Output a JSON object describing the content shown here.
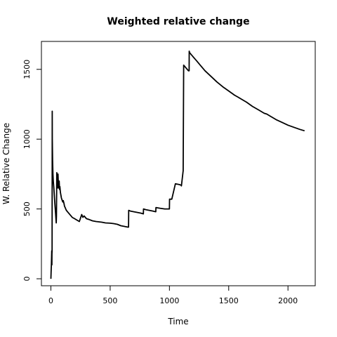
{
  "chart_data": {
    "type": "line",
    "title": "Weighted relative change",
    "xlabel": "Time",
    "ylabel": "W. Relative Change",
    "xlim": [
      -80,
      2230
    ],
    "ylim": [
      -50,
      1700
    ],
    "xticks": [
      0,
      500,
      1000,
      1500,
      2000
    ],
    "yticks": [
      0,
      500,
      1000,
      1500
    ],
    "grid": false,
    "series": [
      {
        "x": [
          0,
          2,
          4,
          6,
          7,
          8,
          9,
          10,
          11,
          12,
          14,
          17,
          20,
          25,
          30,
          35,
          40,
          43,
          45,
          47,
          50,
          52,
          55,
          58,
          60,
          63,
          66,
          70,
          73,
          76,
          80,
          84,
          88,
          92,
          96,
          100,
          104,
          110,
          115,
          120,
          125,
          130,
          140,
          150,
          160,
          170,
          180,
          200,
          220,
          240,
          260,
          270,
          280,
          300,
          320,
          350,
          380,
          400,
          430,
          460,
          500,
          530,
          560,
          590,
          620,
          650,
          655,
          656,
          670,
          700,
          730,
          760,
          780,
          781,
          800,
          830,
          860,
          885,
          886,
          920,
          960,
          1000,
          1001,
          1020,
          1050,
          1080,
          1100,
          1101,
          1115,
          1116,
          1120,
          1130,
          1140,
          1150,
          1160,
          1166,
          1167,
          1170,
          1190,
          1210,
          1230,
          1260,
          1300,
          1350,
          1400,
          1450,
          1500,
          1550,
          1580,
          1600,
          1650,
          1700,
          1750,
          1800,
          1820,
          1830,
          1850,
          1900,
          1950,
          2000,
          2050,
          2100,
          2140
        ],
        "y": [
          0,
          50,
          100,
          160,
          200,
          100,
          180,
          200,
          1200,
          1000,
          850,
          750,
          700,
          650,
          580,
          520,
          460,
          420,
          400,
          450,
          760,
          700,
          650,
          700,
          750,
          680,
          650,
          700,
          640,
          660,
          620,
          600,
          580,
          570,
          560,
          550,
          560,
          540,
          520,
          510,
          500,
          490,
          480,
          470,
          460,
          450,
          440,
          430,
          420,
          410,
          460,
          440,
          450,
          430,
          425,
          415,
          410,
          408,
          405,
          400,
          398,
          395,
          390,
          380,
          375,
          370,
          370,
          490,
          485,
          480,
          475,
          470,
          465,
          500,
          495,
          490,
          485,
          480,
          510,
          505,
          500,
          500,
          570,
          570,
          680,
          675,
          670,
          665,
          770,
          770,
          1530,
          1520,
          1510,
          1500,
          1490,
          1490,
          1630,
          1620,
          1600,
          1580,
          1560,
          1530,
          1490,
          1450,
          1410,
          1375,
          1345,
          1315,
          1300,
          1290,
          1265,
          1235,
          1210,
          1185,
          1180,
          1175,
          1165,
          1140,
          1120,
          1100,
          1085,
          1070,
          1060
        ]
      }
    ]
  }
}
